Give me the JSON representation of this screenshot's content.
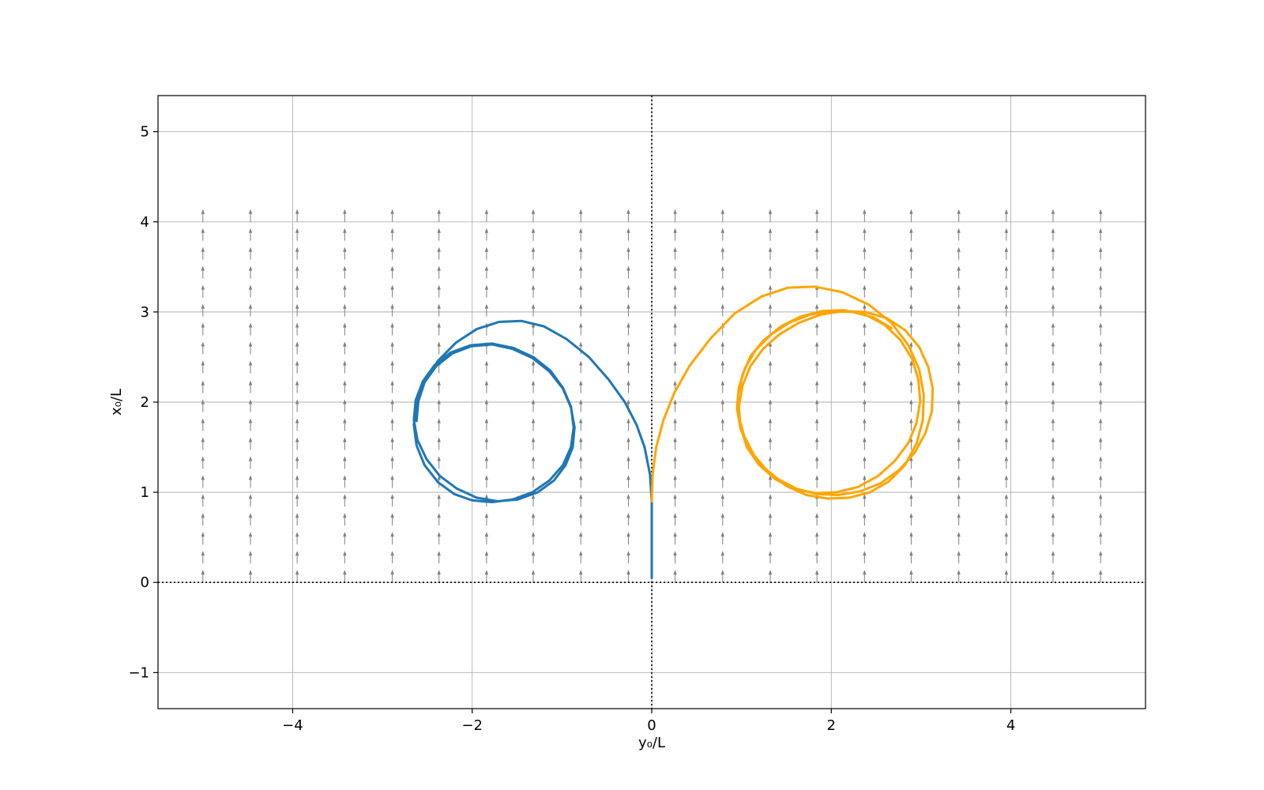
{
  "chart_data": {
    "type": "line",
    "xlabel": "y₀/L",
    "ylabel": "x₀/L",
    "xlim": [
      -5.5,
      5.5
    ],
    "ylim": [
      -1.4,
      5.4
    ],
    "xticks": [
      -4,
      -2,
      0,
      2,
      4
    ],
    "yticks": [
      -1,
      0,
      1,
      2,
      3,
      4,
      5
    ],
    "xtick_labels": [
      "−4",
      "−2",
      "0",
      "2",
      "4"
    ],
    "ytick_labels": [
      "−1",
      "0",
      "1",
      "2",
      "3",
      "4",
      "5"
    ],
    "grid": true,
    "reference_lines": [
      {
        "orientation": "vertical",
        "value": 0,
        "style": "dotted",
        "color": "#000000"
      },
      {
        "orientation": "horizontal",
        "value": 0,
        "style": "dotted",
        "color": "#000000"
      }
    ],
    "vector_field": {
      "direction": "up",
      "color": "#808080",
      "x_values": [
        -5.0,
        -4.47,
        -3.95,
        -3.42,
        -2.89,
        -2.37,
        -1.84,
        -1.32,
        -0.79,
        -0.26,
        0.26,
        0.79,
        1.32,
        1.84,
        2.37,
        2.89,
        3.42,
        3.95,
        4.47,
        5.0
      ],
      "y_values": [
        0.0,
        0.21,
        0.42,
        0.63,
        0.84,
        1.05,
        1.26,
        1.47,
        1.68,
        1.89,
        2.1,
        2.32,
        2.53,
        2.74,
        2.95,
        3.16,
        3.37,
        3.58,
        3.79,
        4.0
      ]
    },
    "series": [
      {
        "color": "#1f77b4",
        "points": [
          [
            0.0,
            0.05
          ],
          [
            0.0,
            0.5
          ],
          [
            0.0,
            0.9
          ],
          [
            -0.02,
            1.2
          ],
          [
            -0.08,
            1.5
          ],
          [
            -0.17,
            1.75
          ],
          [
            -0.3,
            2.0
          ],
          [
            -0.48,
            2.25
          ],
          [
            -0.7,
            2.5
          ],
          [
            -0.95,
            2.7
          ],
          [
            -1.2,
            2.84
          ],
          [
            -1.45,
            2.9
          ],
          [
            -1.7,
            2.89
          ],
          [
            -1.95,
            2.81
          ],
          [
            -2.18,
            2.66
          ],
          [
            -2.38,
            2.46
          ],
          [
            -2.53,
            2.23
          ],
          [
            -2.62,
            1.98
          ],
          [
            -2.65,
            1.75
          ],
          [
            -2.62,
            1.52
          ],
          [
            -2.53,
            1.3
          ],
          [
            -2.38,
            1.11
          ],
          [
            -2.2,
            0.98
          ],
          [
            -2.0,
            0.91
          ],
          [
            -1.78,
            0.89
          ],
          [
            -1.55,
            0.92
          ],
          [
            -1.33,
            1.0
          ],
          [
            -1.14,
            1.13
          ],
          [
            -0.99,
            1.3
          ],
          [
            -0.9,
            1.5
          ],
          [
            -0.87,
            1.72
          ],
          [
            -0.9,
            1.95
          ],
          [
            -0.99,
            2.16
          ],
          [
            -1.13,
            2.35
          ],
          [
            -1.32,
            2.5
          ],
          [
            -1.54,
            2.6
          ],
          [
            -1.78,
            2.65
          ],
          [
            -2.02,
            2.63
          ],
          [
            -2.24,
            2.55
          ],
          [
            -2.42,
            2.41
          ],
          [
            -2.55,
            2.23
          ],
          [
            -2.63,
            2.02
          ],
          [
            -2.65,
            1.8
          ],
          [
            -2.61,
            1.58
          ],
          [
            -2.51,
            1.37
          ],
          [
            -2.36,
            1.18
          ],
          [
            -2.17,
            1.04
          ],
          [
            -1.95,
            0.94
          ],
          [
            -1.72,
            0.9
          ],
          [
            -1.49,
            0.92
          ],
          [
            -1.27,
            1.0
          ],
          [
            -1.09,
            1.13
          ],
          [
            -0.96,
            1.3
          ],
          [
            -0.88,
            1.5
          ],
          [
            -0.86,
            1.72
          ],
          [
            -0.9,
            1.94
          ],
          [
            -0.99,
            2.15
          ],
          [
            -1.14,
            2.34
          ],
          [
            -1.33,
            2.49
          ],
          [
            -1.55,
            2.59
          ],
          [
            -1.78,
            2.64
          ],
          [
            -2.01,
            2.62
          ],
          [
            -2.22,
            2.54
          ],
          [
            -2.4,
            2.4
          ],
          [
            -2.53,
            2.22
          ],
          [
            -2.6,
            2.01
          ],
          [
            -2.62,
            1.79
          ]
        ]
      },
      {
        "color": "#ffa500",
        "points": [
          [
            0.0,
            0.9
          ],
          [
            0.01,
            1.2
          ],
          [
            0.05,
            1.5
          ],
          [
            0.13,
            1.8
          ],
          [
            0.25,
            2.1
          ],
          [
            0.42,
            2.4
          ],
          [
            0.65,
            2.7
          ],
          [
            0.92,
            2.98
          ],
          [
            1.22,
            3.17
          ],
          [
            1.52,
            3.27
          ],
          [
            1.82,
            3.28
          ],
          [
            2.12,
            3.22
          ],
          [
            2.42,
            3.08
          ],
          [
            2.67,
            2.88
          ],
          [
            2.86,
            2.63
          ],
          [
            2.98,
            2.36
          ],
          [
            3.03,
            2.08
          ],
          [
            3.02,
            1.8
          ],
          [
            2.95,
            1.54
          ],
          [
            2.82,
            1.3
          ],
          [
            2.64,
            1.12
          ],
          [
            2.43,
            1.0
          ],
          [
            2.2,
            0.94
          ],
          [
            1.96,
            0.93
          ],
          [
            1.72,
            0.97
          ],
          [
            1.5,
            1.07
          ],
          [
            1.3,
            1.22
          ],
          [
            1.14,
            1.41
          ],
          [
            1.03,
            1.62
          ],
          [
            0.97,
            1.84
          ],
          [
            0.96,
            2.07
          ],
          [
            1.01,
            2.3
          ],
          [
            1.1,
            2.51
          ],
          [
            1.25,
            2.69
          ],
          [
            1.44,
            2.84
          ],
          [
            1.66,
            2.95
          ],
          [
            1.9,
            3.01
          ],
          [
            2.14,
            3.02
          ],
          [
            2.38,
            2.97
          ],
          [
            2.59,
            2.86
          ],
          [
            2.77,
            2.69
          ],
          [
            2.9,
            2.48
          ],
          [
            2.97,
            2.25
          ],
          [
            2.99,
            2.01
          ],
          [
            2.95,
            1.77
          ],
          [
            2.86,
            1.55
          ],
          [
            2.71,
            1.35
          ],
          [
            2.52,
            1.18
          ],
          [
            2.3,
            1.06
          ],
          [
            2.06,
            1.0
          ],
          [
            1.82,
            0.99
          ],
          [
            1.58,
            1.04
          ],
          [
            1.37,
            1.15
          ],
          [
            1.19,
            1.31
          ],
          [
            1.06,
            1.5
          ],
          [
            0.99,
            1.72
          ],
          [
            0.97,
            1.95
          ],
          [
            1.01,
            2.18
          ],
          [
            1.1,
            2.4
          ],
          [
            1.24,
            2.59
          ],
          [
            1.42,
            2.75
          ],
          [
            1.64,
            2.88
          ],
          [
            1.88,
            2.97
          ],
          [
            2.13,
            3.01
          ],
          [
            2.38,
            3.0
          ],
          [
            2.62,
            2.93
          ],
          [
            2.82,
            2.8
          ],
          [
            2.98,
            2.61
          ],
          [
            3.08,
            2.39
          ],
          [
            3.13,
            2.15
          ],
          [
            3.12,
            1.9
          ],
          [
            3.05,
            1.66
          ],
          [
            2.93,
            1.44
          ],
          [
            2.76,
            1.25
          ],
          [
            2.55,
            1.1
          ],
          [
            2.32,
            1.01
          ],
          [
            2.08,
            0.97
          ],
          [
            1.84,
            0.98
          ],
          [
            1.61,
            1.04
          ],
          [
            1.4,
            1.15
          ],
          [
            1.22,
            1.3
          ],
          [
            1.08,
            1.49
          ],
          [
            0.99,
            1.7
          ],
          [
            0.95,
            1.93
          ],
          [
            0.97,
            2.16
          ],
          [
            1.04,
            2.38
          ],
          [
            1.16,
            2.58
          ],
          [
            1.33,
            2.75
          ],
          [
            1.53,
            2.88
          ],
          [
            1.76,
            2.97
          ],
          [
            2.0,
            3.01
          ],
          [
            2.24,
            3.0
          ],
          [
            2.47,
            2.94
          ],
          [
            2.67,
            2.82
          ]
        ]
      }
    ]
  }
}
